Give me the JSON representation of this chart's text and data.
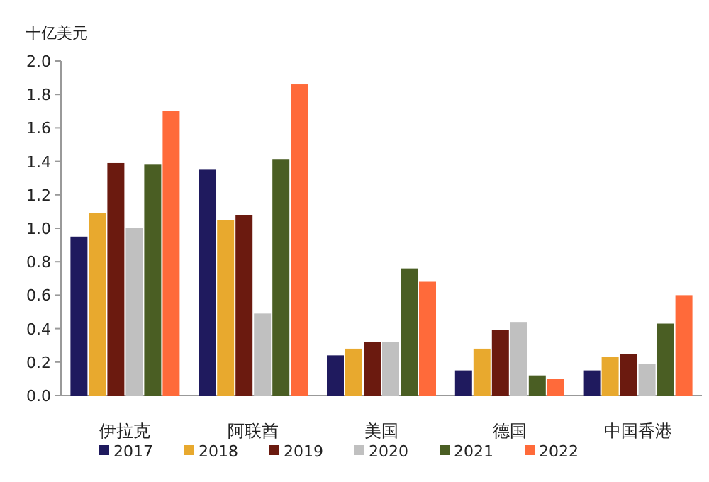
{
  "chart_data": {
    "type": "bar",
    "ylabel": "十亿美元",
    "categories": [
      "伊拉克",
      "阿联酋",
      "美国",
      "德国",
      "中国香港"
    ],
    "series": [
      {
        "name": "2017",
        "color": "#1f1a5e",
        "values": [
          0.95,
          1.35,
          0.24,
          0.15,
          0.15
        ]
      },
      {
        "name": "2018",
        "color": "#e8a92e",
        "values": [
          1.09,
          1.05,
          0.28,
          0.28,
          0.23
        ]
      },
      {
        "name": "2019",
        "color": "#6b1a0f",
        "values": [
          1.39,
          1.08,
          0.32,
          0.39,
          0.25
        ]
      },
      {
        "name": "2020",
        "color": "#c0c0c0",
        "values": [
          1.0,
          0.49,
          0.32,
          0.44,
          0.19
        ]
      },
      {
        "name": "2021",
        "color": "#4a5e23",
        "values": [
          1.38,
          1.41,
          0.76,
          0.12,
          0.43
        ]
      },
      {
        "name": "2022",
        "color": "#ff6a3a",
        "values": [
          1.7,
          1.86,
          0.68,
          0.1,
          0.6
        ]
      }
    ],
    "ylim": [
      0,
      2
    ],
    "yticks": [
      {
        "value": 0,
        "label": "0.0"
      },
      {
        "value": 0.2,
        "label": "0.2"
      },
      {
        "value": 0.4,
        "label": "0.4"
      },
      {
        "value": 0.6,
        "label": "0.6"
      },
      {
        "value": 0.8,
        "label": "0.8"
      },
      {
        "value": 1,
        "label": "1.0"
      },
      {
        "value": 1.2,
        "label": "1.2"
      },
      {
        "value": 1.4,
        "label": "1.4"
      },
      {
        "value": 1.6,
        "label": "1.6"
      },
      {
        "value": 1.8,
        "label": "1.8"
      },
      {
        "value": 2,
        "label": "2.0"
      }
    ],
    "grid": false,
    "legend": "bottom"
  }
}
